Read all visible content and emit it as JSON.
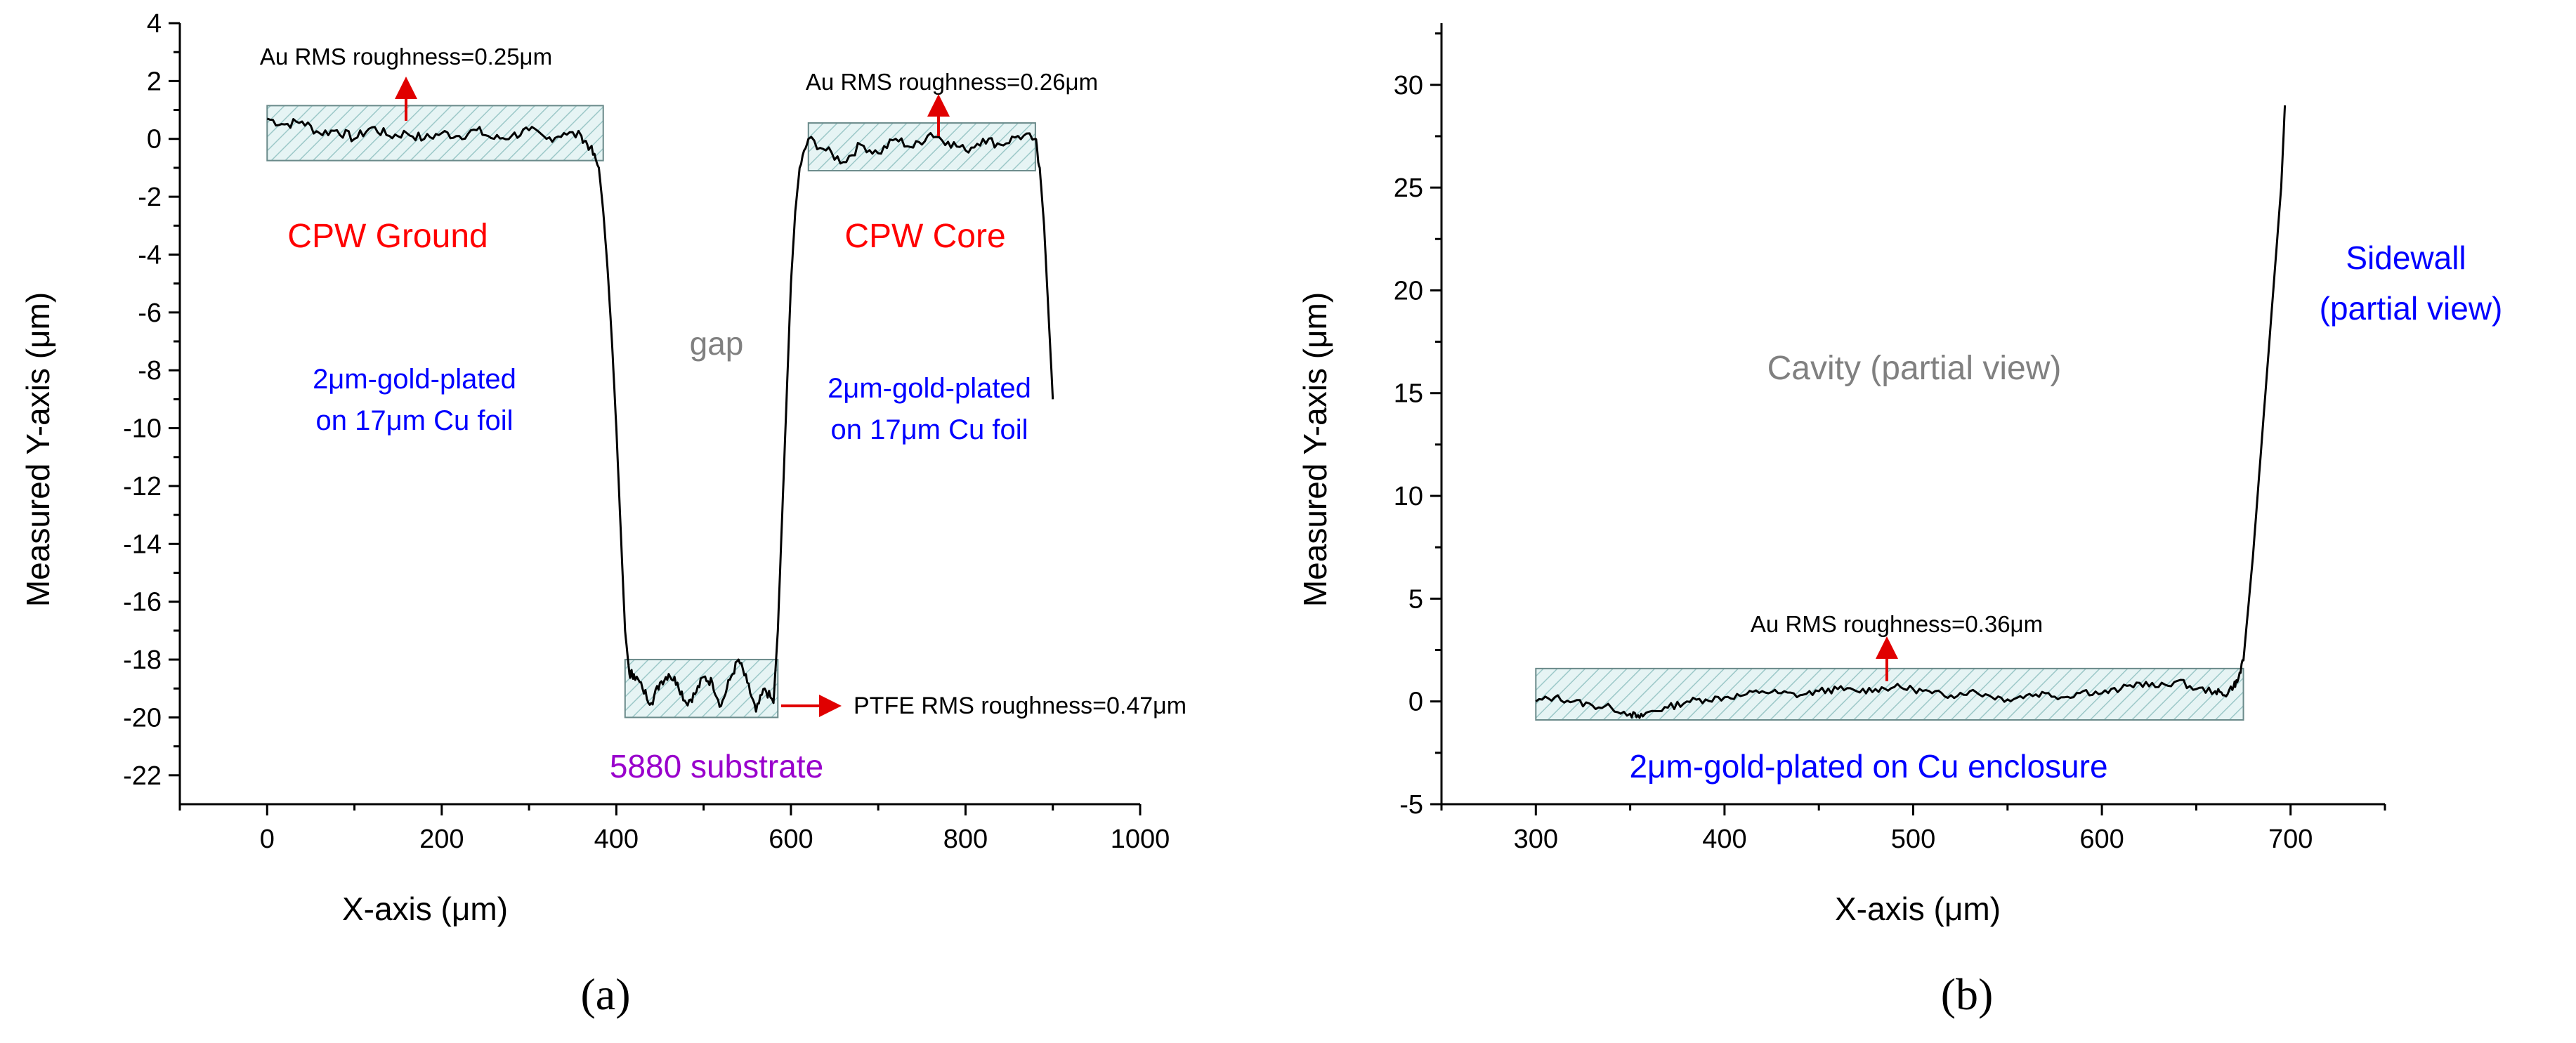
{
  "chart_data": [
    {
      "type": "line",
      "panel_label": "(a)",
      "xlabel": "X-axis (μm)",
      "ylabel": "Measured Y-axis (μm)",
      "xlim": [
        -100,
        1000
      ],
      "ylim": [
        -23,
        4
      ],
      "xticks": [
        0,
        200,
        400,
        600,
        800,
        1000
      ],
      "yticks": [
        4,
        2,
        0,
        -2,
        -4,
        -6,
        -8,
        -10,
        -12,
        -14,
        -16,
        -18,
        -20,
        -22
      ],
      "series": [
        {
          "x": [
            0,
            20,
            40,
            60,
            80,
            100,
            120,
            140,
            160,
            180,
            200,
            220,
            240,
            260,
            280,
            300,
            320,
            340,
            360,
            370,
            380,
            385,
            390,
            395,
            400,
            405,
            410,
            415,
            420,
            430,
            440,
            450,
            460,
            470,
            480,
            490,
            500,
            510,
            520,
            530,
            540,
            550,
            560,
            570,
            580,
            585,
            590,
            595,
            600,
            605,
            610,
            620,
            640,
            660,
            680,
            700,
            720,
            740,
            760,
            780,
            800,
            820,
            840,
            860,
            880,
            885,
            890,
            895,
            900
          ],
          "y": [
            0.7,
            0.5,
            0.6,
            0.2,
            0.3,
            0.0,
            0.4,
            0.1,
            0.2,
            0.0,
            0.2,
            0.1,
            0.3,
            0.0,
            0.1,
            0.3,
            0.0,
            0.2,
            0.1,
            -0.3,
            -1.0,
            -2.5,
            -4.5,
            -7.0,
            -10.0,
            -13.5,
            -17.0,
            -18.5,
            -18.5,
            -19.0,
            -19.5,
            -18.8,
            -18.5,
            -18.8,
            -19.5,
            -19.2,
            -18.6,
            -18.8,
            -19.6,
            -18.7,
            -18.0,
            -18.8,
            -19.8,
            -19.0,
            -19.5,
            -17.0,
            -13.0,
            -9.0,
            -5.0,
            -2.5,
            -1.0,
            0.0,
            -0.4,
            -0.8,
            -0.2,
            -0.5,
            0.0,
            -0.3,
            0.2,
            -0.1,
            -0.4,
            0.0,
            -0.2,
            0.1,
            0.0,
            -1.0,
            -3.0,
            -6.0,
            -9.0
          ]
        }
      ],
      "bands": [
        {
          "x": [
            0,
            385
          ],
          "y": [
            -0.75,
            1.15
          ]
        },
        {
          "x": [
            620,
            880
          ],
          "y": [
            -1.1,
            0.55
          ]
        },
        {
          "x": [
            410,
            585
          ],
          "y": [
            -20.0,
            -18.0
          ]
        }
      ],
      "annotations": [
        {
          "text": "Au RMS roughness=0.25μm",
          "color": "#000000"
        },
        {
          "text": "Au RMS roughness=0.26μm",
          "color": "#000000"
        },
        {
          "text": "CPW Ground",
          "color": "#ff0000"
        },
        {
          "text": "CPW Core",
          "color": "#ff0000"
        },
        {
          "text": "gap",
          "color": "#808080"
        },
        {
          "text": "2μm-gold-plated",
          "color": "#0000ff"
        },
        {
          "text": "on 17μm Cu foil",
          "color": "#0000ff"
        },
        {
          "text": "2μm-gold-plated",
          "color": "#0000ff"
        },
        {
          "text": "on 17μm Cu foil",
          "color": "#0000ff"
        },
        {
          "text": "PTFE RMS roughness=0.47μm",
          "color": "#000000"
        },
        {
          "text": "5880 substrate",
          "color": "#9900cc"
        }
      ]
    },
    {
      "type": "line",
      "panel_label": "(b)",
      "xlabel": "X-axis (μm)",
      "ylabel": "Measured Y-axis (μm)",
      "xlim": [
        250,
        750
      ],
      "ylim": [
        -5,
        33
      ],
      "xticks": [
        300,
        400,
        500,
        600,
        700
      ],
      "yticks": [
        -5,
        0,
        5,
        10,
        15,
        20,
        25,
        30
      ],
      "series": [
        {
          "x": [
            300,
            310,
            320,
            330,
            340,
            350,
            355,
            360,
            370,
            380,
            390,
            400,
            410,
            420,
            430,
            440,
            450,
            460,
            470,
            480,
            490,
            500,
            510,
            520,
            530,
            540,
            550,
            560,
            570,
            580,
            590,
            600,
            610,
            620,
            630,
            640,
            650,
            660,
            665,
            670,
            672,
            675,
            680,
            685,
            690,
            695,
            697
          ],
          "y": [
            0.0,
            0.2,
            0.0,
            -0.2,
            -0.3,
            -0.6,
            -0.8,
            -0.5,
            -0.3,
            0.0,
            0.1,
            0.2,
            0.3,
            0.5,
            0.4,
            0.3,
            0.5,
            0.6,
            0.5,
            0.6,
            0.7,
            0.6,
            0.4,
            0.3,
            0.5,
            0.3,
            0.1,
            0.3,
            0.4,
            0.2,
            0.5,
            0.4,
            0.6,
            0.9,
            0.7,
            1.0,
            0.6,
            0.5,
            0.3,
            0.8,
            1.0,
            2.0,
            7.0,
            13.0,
            19.0,
            25.0,
            29.0
          ]
        }
      ],
      "bands": [
        {
          "x": [
            300,
            675
          ],
          "y": [
            -0.9,
            1.6
          ]
        }
      ],
      "annotations": [
        {
          "text": "Au RMS roughness=0.36μm",
          "color": "#000000"
        },
        {
          "text": "Cavity (partial view)",
          "color": "#808080"
        },
        {
          "text": "Sidewall",
          "color": "#0000ff"
        },
        {
          "text": "(partial view)",
          "color": "#0000ff"
        },
        {
          "text": "2μm-gold-plated on Cu enclosure",
          "color": "#0000ff"
        }
      ]
    }
  ]
}
